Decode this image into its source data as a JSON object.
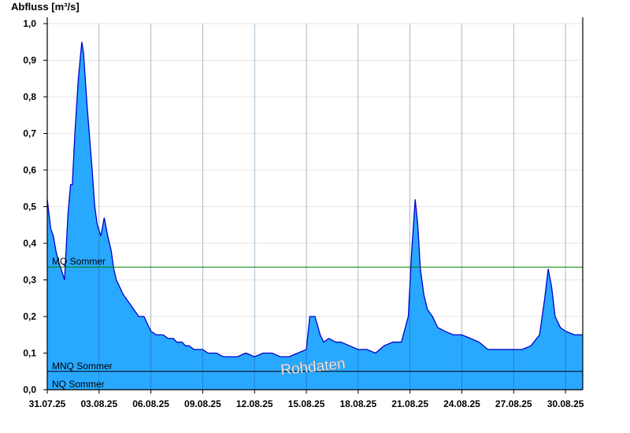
{
  "chart_data": {
    "type": "area",
    "title": "",
    "ylabel": "Abfluss [m³/s]",
    "xlabel": "",
    "ylim": [
      0.0,
      1.0
    ],
    "y_ticks": [
      "0,0",
      "0,1",
      "0,2",
      "0,3",
      "0,4",
      "0,5",
      "0,6",
      "0,7",
      "0,8",
      "0,9",
      "1,0"
    ],
    "x_ticks": [
      "31.07.25",
      "03.08.25",
      "06.08.25",
      "09.08.25",
      "12.08.25",
      "15.08.25",
      "18.08.25",
      "21.08.25",
      "24.08.25",
      "27.08.25",
      "30.08.25"
    ],
    "x_range_days": [
      0,
      31
    ],
    "grid": true,
    "colors": {
      "fill": "#29a8ff",
      "line": "#0000cc",
      "mq_line": "#007a00",
      "mnq_line": "#000000"
    },
    "watermark": "Rohdaten",
    "reference_lines": [
      {
        "name": "MQ Sommer",
        "value": 0.335
      },
      {
        "name": "MNQ Sommer",
        "value": 0.05
      },
      {
        "name": "NQ Sommer",
        "value": 0.0
      }
    ],
    "series": [
      {
        "x": [
          0,
          0.1,
          0.2,
          0.35,
          0.5,
          0.65,
          0.8,
          1.0,
          1.2,
          1.35,
          1.45,
          1.6,
          1.8,
          2.0,
          2.1,
          2.3,
          2.6,
          2.75,
          2.9,
          3.1,
          3.3,
          3.5,
          3.7,
          3.85,
          4.0,
          4.2,
          4.4,
          4.7,
          5.0,
          5.3,
          5.6,
          6.0,
          6.3,
          6.7,
          7.0,
          7.3,
          7.5,
          7.8,
          8.0,
          8.2,
          8.5,
          9.0,
          9.3,
          9.8,
          10.2,
          10.5,
          11.0,
          11.5,
          12.0,
          12.5,
          13.0,
          13.5,
          14.0,
          14.5,
          15.0,
          15.2,
          15.5,
          15.8,
          16.0,
          16.3,
          16.7,
          17.0,
          17.5,
          18.0,
          18.5,
          19.0,
          19.5,
          20.0,
          20.5,
          20.9,
          21.1,
          21.3,
          21.45,
          21.6,
          21.8,
          22.0,
          22.3,
          22.6,
          23.0,
          23.5,
          24.0,
          24.5,
          25.0,
          25.5,
          26.0,
          26.5,
          27.0,
          27.5,
          28.0,
          28.5,
          28.8,
          29.0,
          29.2,
          29.4,
          29.7,
          30.0,
          30.5,
          31.0
        ],
        "y": [
          0.52,
          0.48,
          0.44,
          0.42,
          0.38,
          0.35,
          0.33,
          0.3,
          0.48,
          0.56,
          0.56,
          0.7,
          0.85,
          0.95,
          0.92,
          0.78,
          0.6,
          0.5,
          0.45,
          0.42,
          0.47,
          0.42,
          0.38,
          0.33,
          0.3,
          0.28,
          0.26,
          0.24,
          0.22,
          0.2,
          0.2,
          0.16,
          0.15,
          0.15,
          0.14,
          0.14,
          0.13,
          0.13,
          0.12,
          0.12,
          0.11,
          0.11,
          0.1,
          0.1,
          0.09,
          0.09,
          0.09,
          0.1,
          0.09,
          0.1,
          0.1,
          0.09,
          0.09,
          0.1,
          0.11,
          0.2,
          0.2,
          0.15,
          0.13,
          0.14,
          0.13,
          0.13,
          0.12,
          0.11,
          0.11,
          0.1,
          0.12,
          0.13,
          0.13,
          0.2,
          0.38,
          0.52,
          0.45,
          0.33,
          0.26,
          0.22,
          0.2,
          0.17,
          0.16,
          0.15,
          0.15,
          0.14,
          0.13,
          0.11,
          0.11,
          0.11,
          0.11,
          0.11,
          0.12,
          0.15,
          0.25,
          0.33,
          0.28,
          0.2,
          0.17,
          0.16,
          0.15,
          0.15
        ]
      }
    ]
  }
}
